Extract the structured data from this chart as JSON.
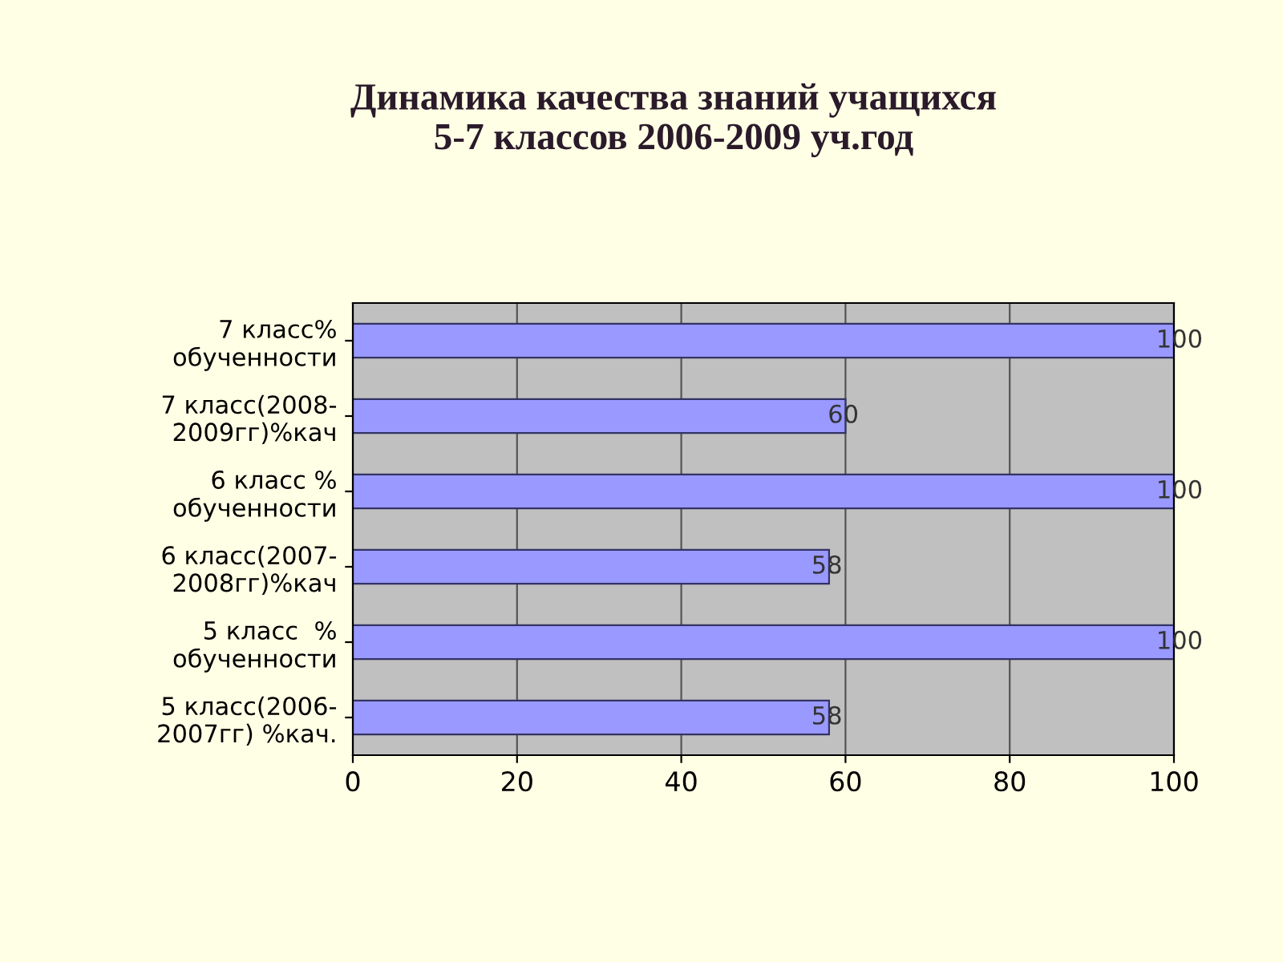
{
  "chart_data": {
    "type": "bar",
    "orientation": "horizontal",
    "title": "Динамика качества знаний учащихся\n5-7 классов 2006-2009 уч.год",
    "categories": [
      "7 класс%\nобученности",
      "7 класс(2008-\n2009гг)%кач",
      "6 класс %\nобученности",
      "6 класс(2007-\n2008гг)%кач",
      "5 класс  %\nобученности",
      "5 класс(2006-\n2007гг) %кач."
    ],
    "values": [
      100,
      60,
      100,
      58,
      100,
      58
    ],
    "color": "#9999ff",
    "xlim": [
      0,
      100
    ],
    "xticks": [
      0,
      20,
      40,
      60,
      80,
      100
    ],
    "grid": "x",
    "data_labels": true,
    "legend": false
  }
}
